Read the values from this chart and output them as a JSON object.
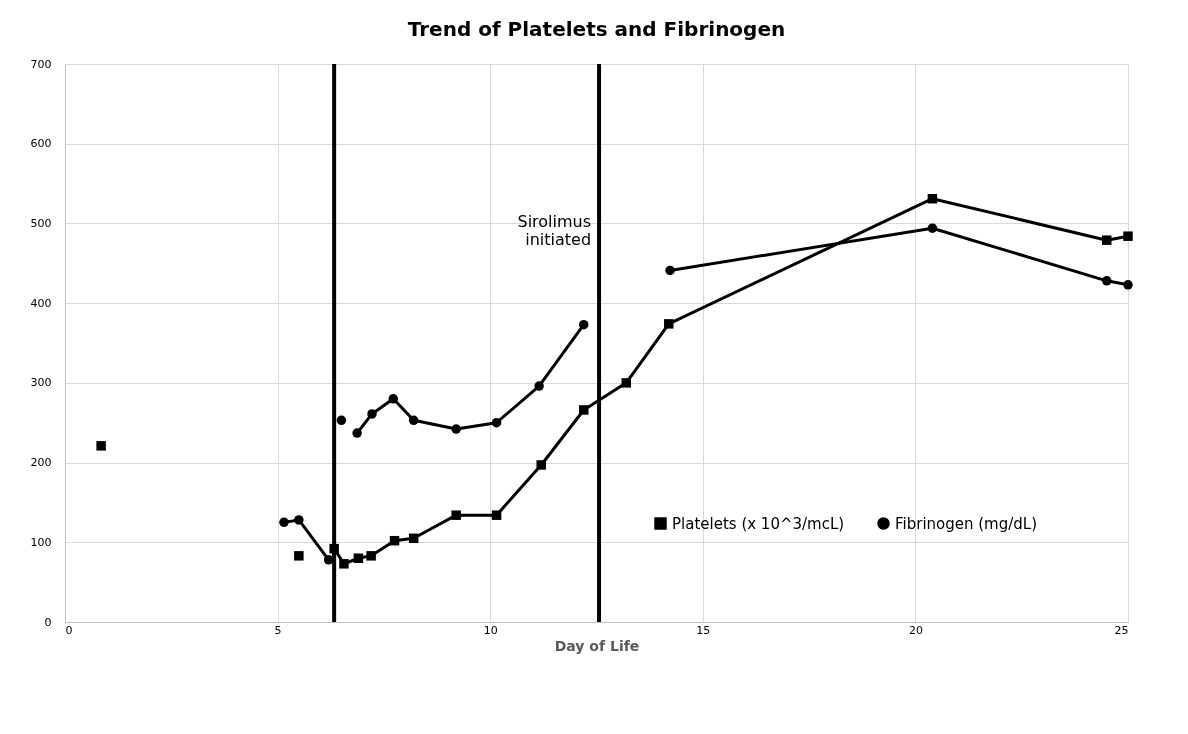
{
  "chart_data": {
    "type": "line",
    "title": "Trend of Platelets and Fibrinogen",
    "xlabel": "Day of Life",
    "series": [
      {
        "name": "Platelets (x 10^3/mcL)",
        "color": "#000000",
        "marker": "square",
        "x": [
          0.85,
          3,
          5.5,
          5.9,
          6.33,
          6.56,
          6.9,
          7.2,
          7.75,
          8.2,
          9.2,
          10.15,
          11.2,
          12.2,
          13.2,
          14.2,
          20.4,
          24.5,
          25
        ],
        "values": [
          221,
          null,
          83,
          null,
          92,
          73,
          80,
          83,
          102,
          105,
          134,
          134,
          197,
          266,
          300,
          374,
          531,
          479,
          484
        ]
      },
      {
        "name": "Fibrinogen (mg/dL)",
        "color": "#000000",
        "marker": "circle",
        "x": [
          5.15,
          5.5,
          6.2,
          6.35,
          6.5,
          6.7,
          6.87,
          7.22,
          7.72,
          8.2,
          9.2,
          10.15,
          11.15,
          12.2,
          13.2,
          14.23,
          20.4,
          24.5,
          25
        ],
        "values": [
          125,
          128,
          78,
          null,
          253,
          null,
          237,
          261,
          280,
          253,
          242,
          250,
          296,
          373,
          null,
          441,
          494,
          428,
          423
        ]
      }
    ],
    "ref_lines": [
      {
        "axis": "x",
        "value": 6.33,
        "label": null
      },
      {
        "axis": "x",
        "value": 12.56,
        "label": "Sirolimus initiated"
      }
    ],
    "xlim": [
      0,
      25
    ],
    "xticks": [
      0,
      5,
      10,
      15,
      20,
      25
    ],
    "ylim": [
      0,
      700
    ],
    "yticks": [
      0,
      100,
      200,
      300,
      400,
      500,
      600,
      700
    ],
    "grid": true,
    "legend": "bottom right",
    "line_style": "solid"
  }
}
